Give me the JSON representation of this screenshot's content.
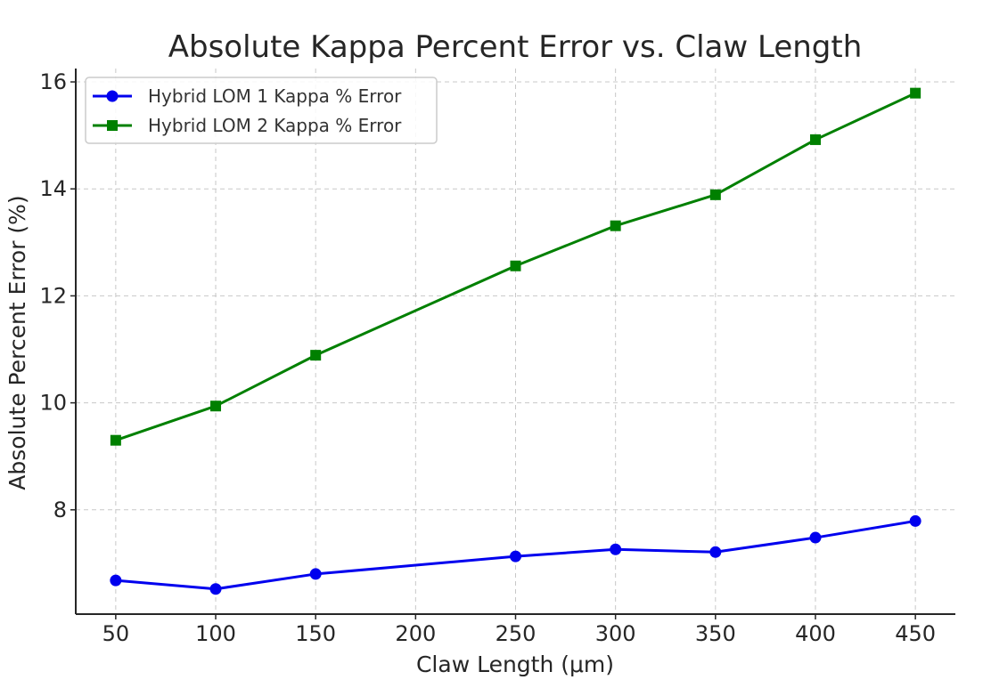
{
  "chart_data": {
    "type": "line",
    "title": "Absolute Kappa Percent Error vs. Claw Length",
    "xlabel": "Claw Length (μm)",
    "ylabel": "Absolute Percent Error (%)",
    "xlim": [
      30,
      470
    ],
    "ylim": [
      6.05,
      16.25
    ],
    "xticks": [
      50,
      100,
      150,
      200,
      250,
      300,
      350,
      400,
      450
    ],
    "yticks": [
      8,
      10,
      12,
      14,
      16
    ],
    "grid": true,
    "legend_position": "top-left",
    "x": [
      50,
      100,
      150,
      250,
      300,
      350,
      400,
      450
    ],
    "series": [
      {
        "name": "Hybrid LOM 1 Kappa % Error",
        "color": "#0000ee",
        "marker": "circle",
        "values": [
          6.68,
          6.52,
          6.8,
          7.13,
          7.26,
          7.21,
          7.48,
          7.79
        ]
      },
      {
        "name": "Hybrid LOM 2 Kappa % Error",
        "color": "#008000",
        "marker": "square",
        "values": [
          9.3,
          9.94,
          10.89,
          12.56,
          13.31,
          13.89,
          14.92,
          15.79
        ]
      }
    ]
  }
}
